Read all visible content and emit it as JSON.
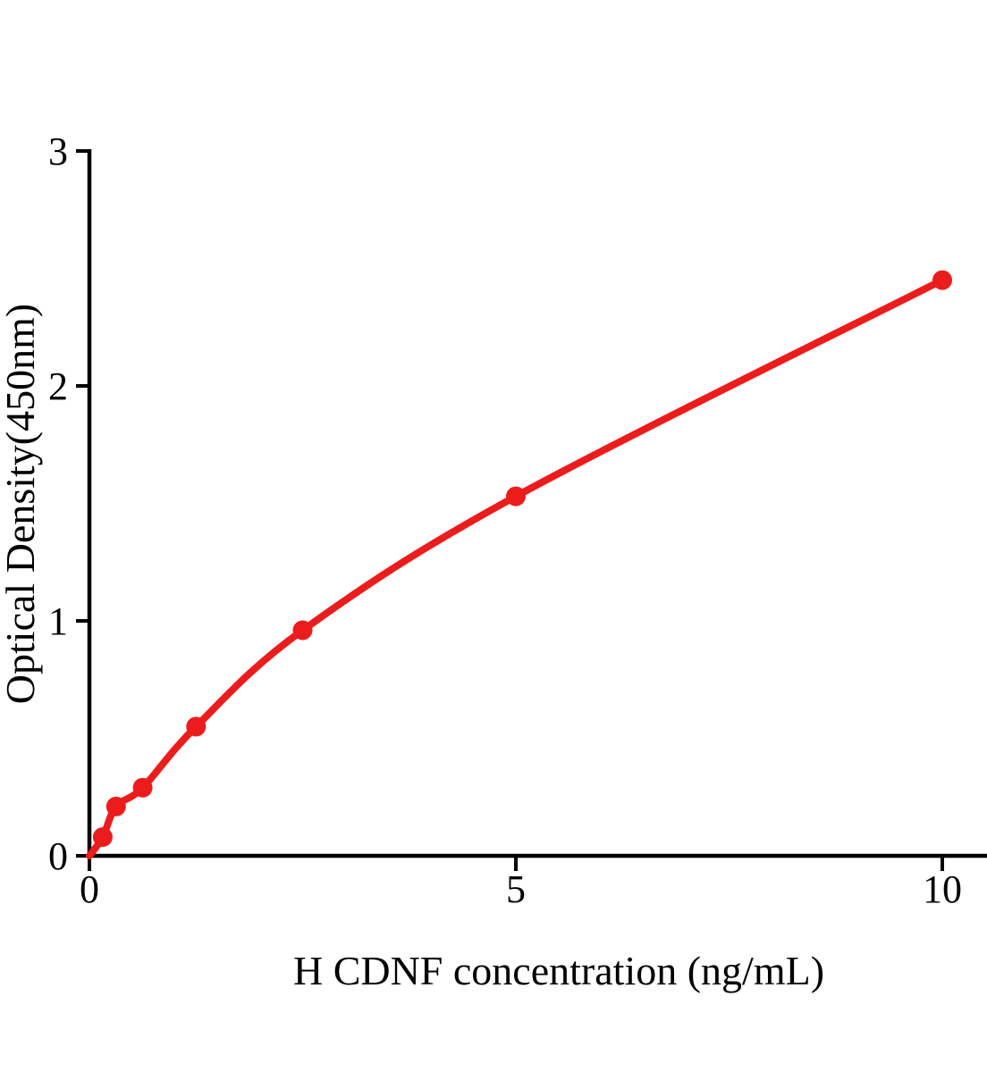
{
  "chart_data": {
    "type": "scatter",
    "title": "",
    "xlabel": "H CDNF concentration (ng/mL)",
    "ylabel": "Optical Density(450nm)",
    "x": [
      0.156,
      0.3125,
      0.625,
      1.25,
      2.5,
      5,
      10
    ],
    "y": [
      0.08,
      0.21,
      0.29,
      0.55,
      0.96,
      1.53,
      2.45
    ],
    "curve_start": {
      "x": 0,
      "y": 0
    },
    "xlim": [
      0,
      10.55
    ],
    "ylim": [
      0,
      3
    ],
    "x_ticks": [
      "0",
      "5",
      "10"
    ],
    "x_tick_values": [
      0,
      5,
      10
    ],
    "y_ticks": [
      "0",
      "1",
      "2",
      "3"
    ],
    "y_tick_values": [
      0,
      1,
      2,
      3
    ],
    "grid": false,
    "legend": null,
    "colors": {
      "curve": "#ED1C1C",
      "marker": "#ED1C1C",
      "axis": "#000000"
    }
  }
}
